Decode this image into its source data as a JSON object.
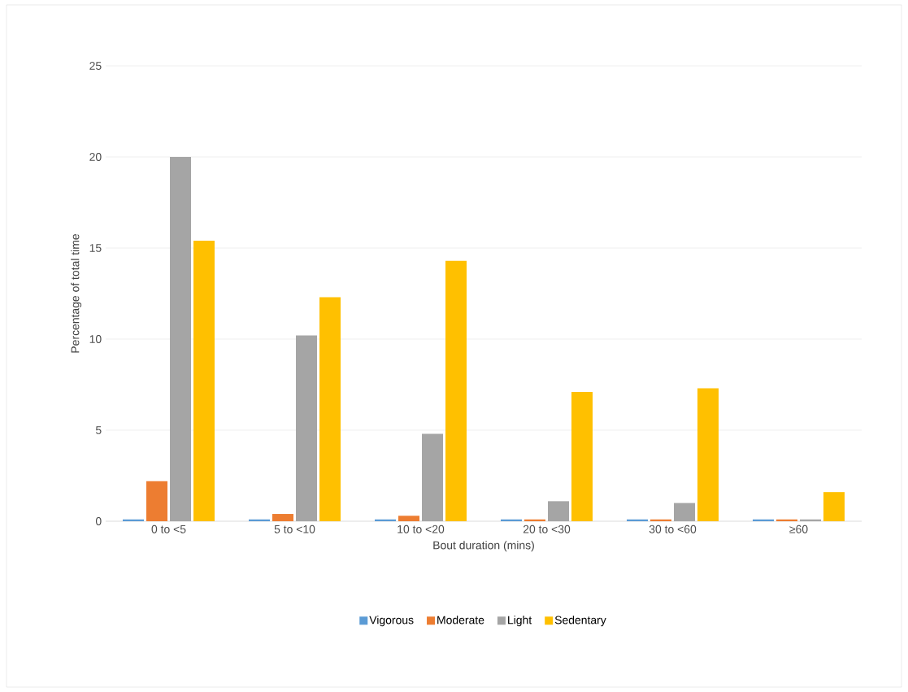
{
  "chart_data": {
    "type": "bar",
    "xlabel": "Bout duration (mins)",
    "ylabel": "Percentage of total time",
    "categories": [
      "0 to <5",
      "5 to <10",
      "10 to <20",
      "20 to <30",
      "30 to <60",
      "≥60"
    ],
    "series": [
      {
        "name": "Vigorous",
        "color": "#5b9bd5",
        "values": [
          0.1,
          0.1,
          0.1,
          0.1,
          0.1,
          0.1
        ]
      },
      {
        "name": "Moderate",
        "color": "#ed7d31",
        "values": [
          2.2,
          0.4,
          0.3,
          0.1,
          0.1,
          0.1
        ]
      },
      {
        "name": "Light",
        "color": "#a5a5a5",
        "values": [
          20.0,
          10.2,
          4.8,
          1.1,
          1.0,
          0.1
        ]
      },
      {
        "name": "Sedentary",
        "color": "#ffc000",
        "values": [
          15.4,
          12.3,
          14.3,
          7.1,
          7.3,
          1.6
        ]
      }
    ],
    "ylim": [
      0,
      25
    ],
    "yticks": [
      0,
      5,
      10,
      15,
      20,
      25
    ],
    "grid": "y",
    "legend": "bottom"
  }
}
